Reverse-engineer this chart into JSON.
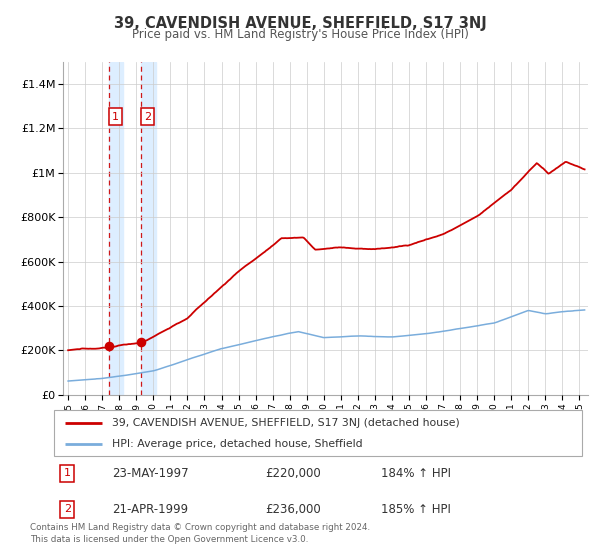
{
  "title": "39, CAVENDISH AVENUE, SHEFFIELD, S17 3NJ",
  "subtitle": "Price paid vs. HM Land Registry's House Price Index (HPI)",
  "legend_line1": "39, CAVENDISH AVENUE, SHEFFIELD, S17 3NJ (detached house)",
  "legend_line2": "HPI: Average price, detached house, Sheffield",
  "footer_line1": "Contains HM Land Registry data © Crown copyright and database right 2024.",
  "footer_line2": "This data is licensed under the Open Government Licence v3.0.",
  "sale1_label": "1",
  "sale1_date": "23-MAY-1997",
  "sale1_price": "£220,000",
  "sale1_hpi": "184% ↑ HPI",
  "sale1_year": 1997.38,
  "sale1_value": 220000,
  "sale2_label": "2",
  "sale2_date": "21-APR-1999",
  "sale2_price": "£236,000",
  "sale2_hpi": "185% ↑ HPI",
  "sale2_year": 1999.29,
  "sale2_value": 236000,
  "red_line_color": "#cc0000",
  "blue_line_color": "#7aaddc",
  "highlight_color": "#ddeeff",
  "dot_color": "#cc0000",
  "sale_box_color": "#cc0000",
  "grid_color": "#cccccc",
  "background_color": "#ffffff",
  "ylim_max": 1500000,
  "ylim_min": 0,
  "xlim_min": 1994.7,
  "xlim_max": 2025.5,
  "ytick_interval": 200000,
  "xtick_start": 1995,
  "xtick_end": 2025
}
